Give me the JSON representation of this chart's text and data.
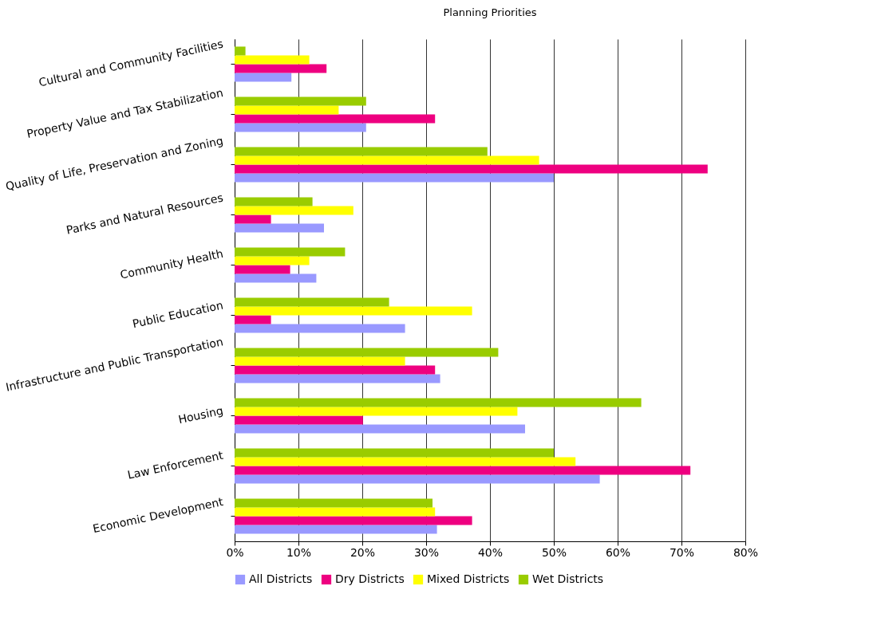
{
  "chart_data": {
    "type": "bar",
    "orientation": "horizontal",
    "title": "Planning Priorities",
    "categories": [
      "Cultural and Community Facilities",
      "Property Value and Tax Stabilization",
      "Quality of Life, Preservation and Zoning",
      "Parks and Natural Resources",
      "Community Health",
      "Public Education",
      "Infrastructure and Public Transportation",
      "Housing",
      "Law Enforcement",
      "Economic Development"
    ],
    "series": [
      {
        "name": "All Districts",
        "color": "#9999ff",
        "values": [
          8.9,
          20.6,
          50.0,
          14.0,
          12.8,
          26.7,
          32.2,
          45.5,
          57.2,
          31.7
        ]
      },
      {
        "name": "Dry Districts",
        "color": "#ee0080",
        "values": [
          14.4,
          31.4,
          74.1,
          5.7,
          8.7,
          5.7,
          31.4,
          20.1,
          71.4,
          37.2
        ]
      },
      {
        "name": "Mixed Districts",
        "color": "#ffff00",
        "values": [
          11.7,
          16.3,
          47.7,
          18.6,
          11.7,
          37.2,
          26.7,
          44.3,
          53.4,
          31.4
        ]
      },
      {
        "name": "Wet Districts",
        "color": "#99cc00",
        "values": [
          1.7,
          20.6,
          39.6,
          12.2,
          17.3,
          24.2,
          41.3,
          63.7,
          50.0,
          31.0
        ]
      }
    ],
    "xlim": [
      0,
      80
    ],
    "xticks": [
      {
        "value": 0,
        "label": "0%"
      },
      {
        "value": 10,
        "label": "10%"
      },
      {
        "value": 20,
        "label": "20%"
      },
      {
        "value": 30,
        "label": "30%"
      },
      {
        "value": 40,
        "label": "40%"
      },
      {
        "value": 50,
        "label": "50%"
      },
      {
        "value": 60,
        "label": "60%"
      },
      {
        "value": 70,
        "label": "70%"
      },
      {
        "value": 80,
        "label": "80%"
      }
    ],
    "grid": "x",
    "legend": "bottom"
  }
}
